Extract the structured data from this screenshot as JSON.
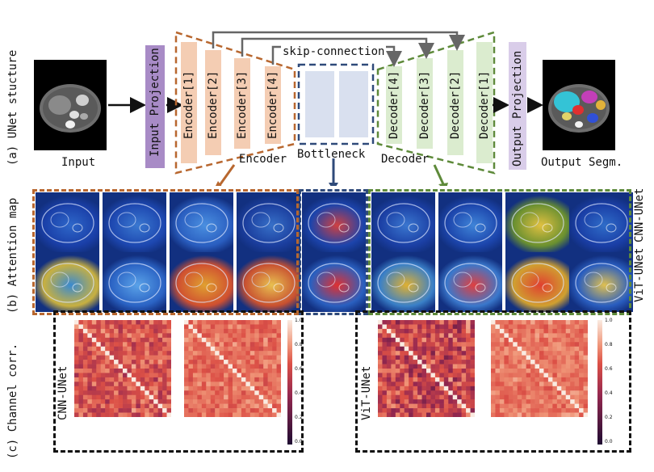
{
  "section_labels": {
    "a": "(a) UNet stucture",
    "b": "(b) Attention map",
    "c": "(c) Channel corr."
  },
  "row_labels": {
    "cnn": "CNN-UNet",
    "vit": "ViT-UNet"
  },
  "pipeline": {
    "input_label": "Input",
    "output_label": "Output Segm.",
    "input_projection": "Input Projection",
    "output_projection": "Output Projection",
    "encoders": [
      "Encoder[1]",
      "Encoder[2]",
      "Encoder[3]",
      "Encoder[4]"
    ],
    "decoders": [
      "Decoder[4]",
      "Decoder[3]",
      "Decoder[2]",
      "Decoder[1]"
    ],
    "skip_connection": "skip-connection",
    "encoder_label": "Encoder",
    "bottleneck_label": "Bottleneck",
    "decoder_label": "Decoder"
  },
  "colorbar_ticks": [
    "1.0",
    "0.8",
    "0.6",
    "0.4",
    "0.2",
    "0.0"
  ],
  "colors": {
    "encoder_fill": "#f4cdb3",
    "encoder_border": "#b8672f",
    "decoder_fill": "#dbeccf",
    "decoder_border": "#5e8a3a",
    "bottleneck_fill": "#d9e0ef",
    "bottleneck_border": "#2f4a7a",
    "projection_fill": "#a88bc6",
    "projection_light": "#d9cde9"
  }
}
